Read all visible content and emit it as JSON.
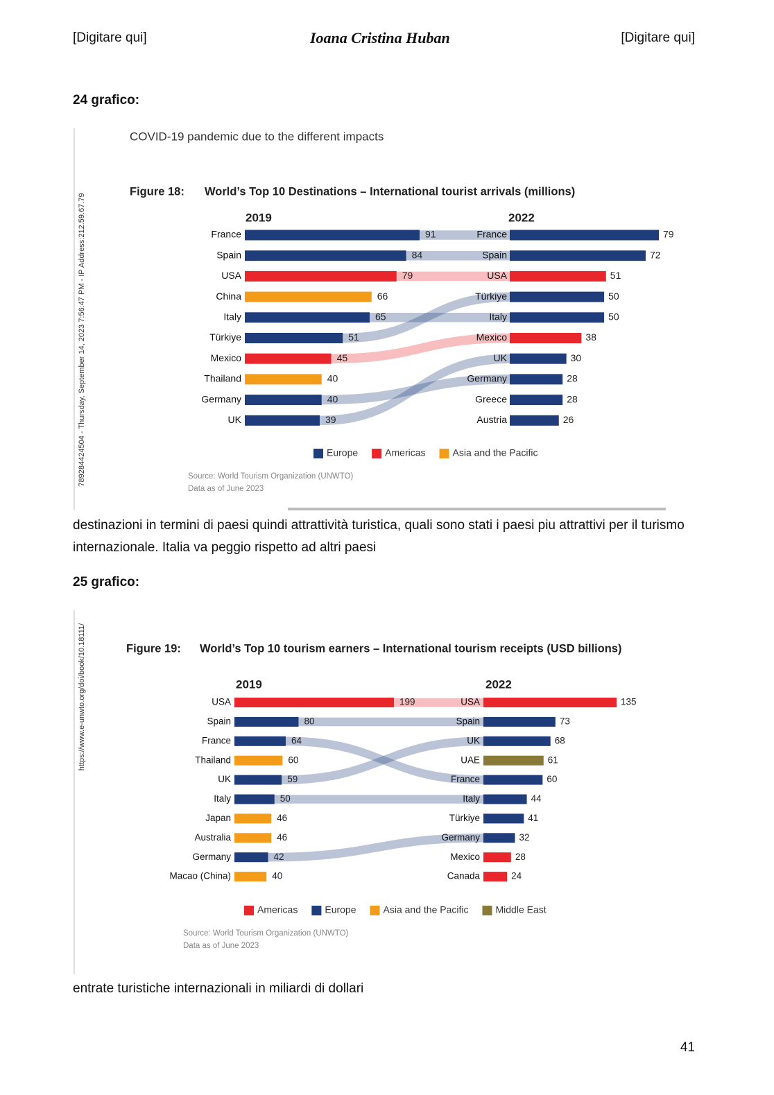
{
  "header": {
    "left": "[Digitare qui]",
    "center": "Ioana Cristina Huban",
    "right": "[Digitare qui]"
  },
  "sections": [
    {
      "heading": "24 grafico:",
      "text": "destinazioni in termini di paesi quindi attrattività turistica, quali sono stati i paesi piu attrattivi per il turismo internazionale. Italia va peggio rispetto ad altri paesi"
    },
    {
      "heading": "25 grafico:",
      "text": "entrate turistiche internazionali in miliardi di dollari"
    }
  ],
  "page_number": "41",
  "chart_data": [
    {
      "type": "paired_bar",
      "subtitle": "COVID-19 pandemic due to the different impacts",
      "figure_label": "Figure 18:",
      "title": "World’s Top 10 Destinations – International tourist arrivals (millions)",
      "side_note": "789284424504 - Thursday, September 14, 2023 7:56:47 PM - IP Address:212.59.67.79",
      "panels": [
        {
          "title": "2019",
          "categories": [
            "France",
            "Spain",
            "USA",
            "China",
            "Italy",
            "Türkiye",
            "Mexico",
            "Thailand",
            "Germany",
            "UK"
          ],
          "values": [
            91,
            84,
            79,
            66,
            65,
            51,
            45,
            40,
            40,
            39
          ],
          "colors": [
            "#1f3d7a",
            "#1f3d7a",
            "#e8262b",
            "#f39c1a",
            "#1f3d7a",
            "#1f3d7a",
            "#e8262b",
            "#f39c1a",
            "#1f3d7a",
            "#1f3d7a"
          ]
        },
        {
          "title": "2022",
          "categories": [
            "France",
            "Spain",
            "USA",
            "Türkiye",
            "Italy",
            "Mexico",
            "UK",
            "Germany",
            "Greece",
            "Austria"
          ],
          "values": [
            79,
            72,
            51,
            50,
            50,
            38,
            30,
            28,
            28,
            26
          ],
          "colors": [
            "#1f3d7a",
            "#1f3d7a",
            "#e8262b",
            "#1f3d7a",
            "#1f3d7a",
            "#e8262b",
            "#1f3d7a",
            "#1f3d7a",
            "#1f3d7a",
            "#1f3d7a"
          ]
        }
      ],
      "legend": [
        {
          "name": "Europe",
          "color": "#1f3d7a"
        },
        {
          "name": "Americas",
          "color": "#e8262b"
        },
        {
          "name": "Asia and the Pacific",
          "color": "#f39c1a"
        }
      ],
      "source": [
        "Source: World Tourism Organization (UNWTO)",
        "Data as of June 2023"
      ]
    },
    {
      "type": "paired_bar",
      "figure_label": "Figure 19:",
      "title": "World’s Top 10 tourism earners – International tourism receipts (USD billions)",
      "side_note": "https://www.e-unwto.org/doi/book/10.18111/",
      "panels": [
        {
          "title": "2019",
          "categories": [
            "USA",
            "Spain",
            "France",
            "Thailand",
            "UK",
            "Italy",
            "Japan",
            "Australia",
            "Germany",
            "Macao (China)"
          ],
          "values": [
            199,
            80,
            64,
            60,
            59,
            50,
            46,
            46,
            42,
            40
          ],
          "colors": [
            "#e8262b",
            "#1f3d7a",
            "#1f3d7a",
            "#f39c1a",
            "#1f3d7a",
            "#1f3d7a",
            "#f39c1a",
            "#f39c1a",
            "#1f3d7a",
            "#f39c1a"
          ]
        },
        {
          "title": "2022",
          "categories": [
            "USA",
            "Spain",
            "UK",
            "UAE",
            "France",
            "Italy",
            "Türkiye",
            "Germany",
            "Mexico",
            "Canada"
          ],
          "values": [
            135,
            73,
            68,
            61,
            60,
            44,
            41,
            32,
            28,
            24
          ],
          "colors": [
            "#e8262b",
            "#1f3d7a",
            "#1f3d7a",
            "#8a7a3a",
            "#1f3d7a",
            "#1f3d7a",
            "#1f3d7a",
            "#1f3d7a",
            "#e8262b",
            "#e8262b"
          ]
        }
      ],
      "legend": [
        {
          "name": "Americas",
          "color": "#e8262b"
        },
        {
          "name": "Europe",
          "color": "#1f3d7a"
        },
        {
          "name": "Asia and the Pacific",
          "color": "#f39c1a"
        },
        {
          "name": "Middle East",
          "color": "#8a7a3a"
        }
      ],
      "source": [
        "Source: World Tourism Organization (UNWTO)",
        "Data as of June 2023"
      ]
    }
  ]
}
